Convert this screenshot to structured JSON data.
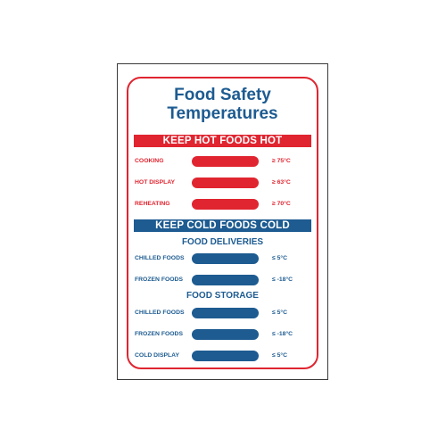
{
  "title": {
    "line1": "Food Safety",
    "line2": "Temperatures"
  },
  "colors": {
    "hot": "#e02530",
    "cold": "#1d5b91"
  },
  "hot_section": {
    "banner": "KEEP HOT FOODS HOT",
    "rows": [
      {
        "label": "COOKING",
        "temp": "≥ 75°C"
      },
      {
        "label": "HOT DISPLAY",
        "temp": "≥ 63°C"
      },
      {
        "label": "REHEATING",
        "temp": "≥ 70°C"
      }
    ]
  },
  "cold_section": {
    "banner": "KEEP COLD FOODS COLD",
    "deliveries": {
      "heading": "FOOD DELIVERIES",
      "rows": [
        {
          "label": "CHILLED FOODS",
          "temp": "≤ 5°C"
        },
        {
          "label": "FROZEN FOODS",
          "temp": "≤ -18°C"
        }
      ]
    },
    "storage": {
      "heading": "FOOD STORAGE",
      "rows": [
        {
          "label": "CHILLED FOODS",
          "temp": "≤ 5°C"
        },
        {
          "label": "FROZEN FOODS",
          "temp": "≤ -18°C"
        },
        {
          "label": "COLD DISPLAY",
          "temp": "≤ 5°C"
        }
      ]
    }
  }
}
